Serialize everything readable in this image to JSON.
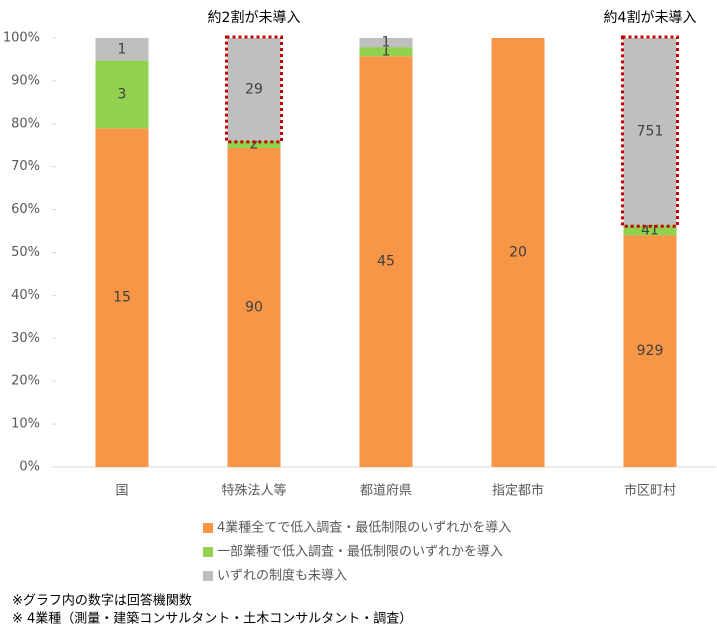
{
  "chart_data": {
    "type": "bar",
    "stacked": "percent",
    "categories": [
      "国",
      "特殊法人等",
      "都道府県",
      "指定都市",
      "市区町村"
    ],
    "series": [
      {
        "name": "4業種全てで低入調査・最低制限のいずれかを導入",
        "color": "#f79646",
        "values": [
          15,
          90,
          45,
          20,
          929
        ]
      },
      {
        "name": "一部業種で低入調査・最低制限のいずれかを導入",
        "color": "#92d050",
        "values": [
          3,
          2,
          1,
          0,
          41
        ]
      },
      {
        "name": "いずれの制度も未導入",
        "color": "#bfbfbf",
        "values": [
          1,
          29,
          1,
          0,
          751
        ]
      }
    ],
    "ylim": [
      0,
      100
    ],
    "yticks": [
      {
        "value": 0,
        "label": "0%"
      },
      {
        "value": 10,
        "label": "10%"
      },
      {
        "value": 20,
        "label": "20%"
      },
      {
        "value": 30,
        "label": "30%"
      },
      {
        "value": 40,
        "label": "40%"
      },
      {
        "value": 50,
        "label": "50%"
      },
      {
        "value": 60,
        "label": "60%"
      },
      {
        "value": 70,
        "label": "70%"
      },
      {
        "value": 80,
        "label": "80%"
      },
      {
        "value": 90,
        "label": "90%"
      },
      {
        "value": 100,
        "label": "100%"
      }
    ],
    "annotations": [
      "約2割が未導入",
      "約4割が未導入"
    ],
    "notes": [
      "※グラフ内の数字は回答機関数",
      "※ 4業種（測量・建築コンサルタント・土木コンサルタント・調査）"
    ]
  }
}
